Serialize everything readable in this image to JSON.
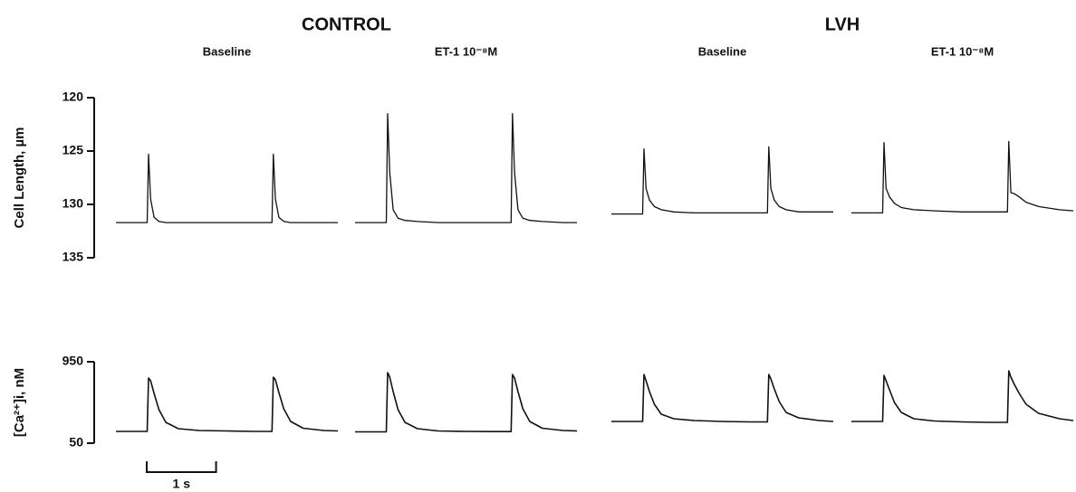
{
  "chart_data": {
    "type": "line",
    "color": "#111111",
    "groups": [
      {
        "title": "CONTROL",
        "panels": [
          "Baseline",
          "ET-1 10⁻⁸M"
        ]
      },
      {
        "title": "LVH",
        "panels": [
          "Baseline",
          "ET-1 10⁻⁸M"
        ]
      }
    ],
    "x": [
      0,
      0.45,
      0.47,
      0.5,
      0.55,
      0.62,
      0.72,
      0.9,
      1.2,
      1.6,
      2.0,
      2.25,
      2.27,
      2.3,
      2.35,
      2.42,
      2.52,
      2.7,
      3.0,
      3.2
    ],
    "xlim": [
      0,
      3.2
    ],
    "scale_bar": {
      "value": 1,
      "label": "1 s"
    },
    "rows": [
      {
        "ylabel": "Cell Length, µm",
        "ylim": [
          135,
          120
        ],
        "yticks": [
          120,
          125,
          130,
          135
        ],
        "series": [
          {
            "values": [
              131.7,
              131.7,
              125.3,
              129.5,
              131.2,
              131.6,
              131.7,
              131.7,
              131.7,
              131.7,
              131.7,
              131.7,
              125.3,
              129.5,
              131.2,
              131.6,
              131.7,
              131.7,
              131.7,
              131.7
            ]
          },
          {
            "values": [
              131.7,
              131.7,
              121.5,
              127,
              130.5,
              131.3,
              131.5,
              131.6,
              131.7,
              131.7,
              131.7,
              131.7,
              121.5,
              127,
              130.5,
              131.3,
              131.5,
              131.6,
              131.7,
              131.7
            ]
          },
          {
            "values": [
              130.9,
              130.9,
              124.8,
              128.5,
              129.6,
              130.2,
              130.5,
              130.7,
              130.8,
              130.8,
              130.8,
              130.8,
              124.6,
              128.5,
              129.6,
              130.2,
              130.5,
              130.7,
              130.7,
              130.7
            ]
          },
          {
            "values": [
              130.8,
              130.8,
              124.2,
              128.5,
              129.3,
              129.9,
              130.3,
              130.5,
              130.6,
              130.7,
              130.7,
              130.7,
              124.1,
              128.9,
              129.0,
              129.3,
              129.8,
              130.2,
              130.5,
              130.6
            ]
          }
        ]
      },
      {
        "ylabel": "[Ca²⁺]i, nM",
        "ylim": [
          50,
          950
        ],
        "yticks": [
          50,
          950
        ],
        "series": [
          {
            "values": [
              180,
              180,
              770,
              740,
              600,
              420,
              280,
              210,
              190,
              185,
              180,
              180,
              780,
              750,
              610,
              430,
              290,
              215,
              190,
              185
            ]
          },
          {
            "values": [
              175,
              175,
              830,
              780,
              620,
              420,
              280,
              210,
              185,
              180,
              178,
              178,
              810,
              770,
              620,
              430,
              290,
              215,
              190,
              185
            ]
          },
          {
            "values": [
              290,
              290,
              810,
              740,
              620,
              480,
              370,
              320,
              300,
              290,
              285,
              285,
              810,
              760,
              650,
              510,
              390,
              330,
              300,
              290
            ]
          },
          {
            "values": [
              290,
              290,
              800,
              740,
              640,
              500,
              390,
              320,
              295,
              285,
              280,
              280,
              850,
              780,
              700,
              600,
              480,
              380,
              320,
              300
            ]
          }
        ]
      }
    ]
  }
}
